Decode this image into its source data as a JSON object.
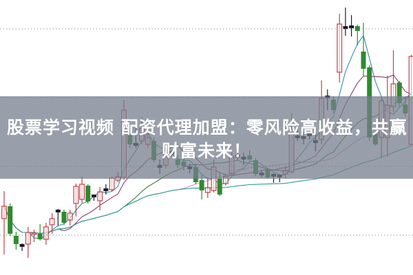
{
  "banner": {
    "line1": "股票学习视频 配资代理加盟：零风险高收益，共赢",
    "line2": "财富未来！"
  },
  "colors": {
    "up": "#c0404a",
    "down": "#2e8b2e",
    "doji": "#1a1a2a",
    "grid": "#9a9a9a",
    "ma5": "#2f8fa8",
    "ma10": "#8b3a6b",
    "ma20": "#3a7a3a",
    "ma30": "#d49ad4",
    "ma60": "#2a9d8f"
  },
  "chart_data": {
    "type": "candlestick",
    "title": "",
    "xlabel": "",
    "ylabel": "",
    "ylim": [
      0,
      40
    ],
    "grid": true,
    "gridlines": [
      35.8,
      25.8,
      15.8,
      5.8
    ],
    "ma_periods": [
      5,
      10,
      20,
      30,
      60
    ],
    "candles_ohlc": [
      [
        8.2,
        10.0,
        12.2,
        3.0
      ],
      [
        10.0,
        6.0,
        10.4,
        5.7
      ],
      [
        5.7,
        4.5,
        6.3,
        3.7
      ],
      [
        4.2,
        4.3,
        4.6,
        3.5
      ],
      [
        4.5,
        6.2,
        7.0,
        2.5
      ],
      [
        5.9,
        6.1,
        6.6,
        4.8
      ],
      [
        6.0,
        5.2,
        7.4,
        5.0
      ],
      [
        5.2,
        7.0,
        7.6,
        4.4
      ],
      [
        7.3,
        8.2,
        9.0,
        6.0
      ],
      [
        9.2,
        9.3,
        9.6,
        7.2
      ],
      [
        9.2,
        7.6,
        9.5,
        7.3
      ],
      [
        8.0,
        9.0,
        9.5,
        7.2
      ],
      [
        10.4,
        12.9,
        13.3,
        8.5
      ],
      [
        11.0,
        13.2,
        14.3,
        10.5
      ],
      [
        13.0,
        10.7,
        13.2,
        10.4
      ],
      [
        11.4,
        11.5,
        11.7,
        10.8
      ],
      [
        10.8,
        12.1,
        12.8,
        9.4
      ],
      [
        12.3,
        12.4,
        13.2,
        11.7
      ],
      [
        12.4,
        14.1,
        14.4,
        12.2
      ],
      [
        13.8,
        14.3,
        15.0,
        13.5
      ],
      [
        14.2,
        24.0,
        25.5,
        13.8
      ],
      [
        21.0,
        19.0,
        22.0,
        18.5
      ],
      [
        18.9,
        19.0,
        22.0,
        18.5
      ],
      [
        19.5,
        21.3,
        23.0,
        19.0
      ],
      [
        19.0,
        20.0,
        20.5,
        18.5
      ],
      [
        19.5,
        16.7,
        20.0,
        16.4
      ],
      [
        15.7,
        15.8,
        16.8,
        14.7
      ],
      [
        16.0,
        18.0,
        18.5,
        15.5
      ],
      [
        17.7,
        17.8,
        18.2,
        17.2
      ],
      [
        16.8,
        16.0,
        17.5,
        15.5
      ],
      [
        16.5,
        15.8,
        17.0,
        15.2
      ],
      [
        15.5,
        15.6,
        16.2,
        14.8
      ],
      [
        15.7,
        13.5,
        16.2,
        13.2
      ],
      [
        13.8,
        12.3,
        14.5,
        11.0
      ],
      [
        12.0,
        12.7,
        14.2,
        11.2
      ],
      [
        12.3,
        15.7,
        16.8,
        12.0
      ],
      [
        14.0,
        11.7,
        15.0,
        11.5
      ],
      [
        13.3,
        14.3,
        14.8,
        13.0
      ],
      [
        14.8,
        17.2,
        18.0,
        14.5
      ],
      [
        17.2,
        17.3,
        17.8,
        16.8
      ],
      [
        16.9,
        17.0,
        17.8,
        16.0
      ],
      [
        17.4,
        16.8,
        18.2,
        16.4
      ],
      [
        16.7,
        14.7,
        17.0,
        14.4
      ],
      [
        14.6,
        14.7,
        15.2,
        14.2
      ],
      [
        15.3,
        14.2,
        15.6,
        14.0
      ],
      [
        14.4,
        14.5,
        14.8,
        13.4
      ],
      [
        14.3,
        14.4,
        14.7,
        13.5
      ],
      [
        14.7,
        15.2,
        15.8,
        14.0
      ],
      [
        15.0,
        20.7,
        23.5,
        14.8
      ],
      [
        20.1,
        20.0,
        21.0,
        19.5
      ],
      [
        20.0,
        19.9,
        20.8,
        19.0
      ],
      [
        20.3,
        20.4,
        20.8,
        19.7
      ],
      [
        19.4,
        19.3,
        21.0,
        18.0
      ],
      [
        19.7,
        25.7,
        28.3,
        19.0
      ],
      [
        25.9,
        25.8,
        27.0,
        24.0
      ],
      [
        25.5,
        24.0,
        26.0,
        23.5
      ],
      [
        29.5,
        36.5,
        38.0,
        28.0
      ],
      [
        35.9,
        36.0,
        38.9,
        34.8
      ],
      [
        36.0,
        36.1,
        37.8,
        34.7
      ],
      [
        36.2,
        35.5,
        36.4,
        33.4
      ],
      [
        32.5,
        30.0,
        36.7,
        29.0
      ],
      [
        30.2,
        20.0,
        30.5,
        19.5
      ],
      [
        20.5,
        19.0,
        21.0,
        18.8
      ],
      [
        20.0,
        25.3,
        26.0,
        17.0
      ],
      [
        20.0,
        24.7,
        29.0,
        17.2
      ],
      [
        24.5,
        27.8,
        32.7,
        23.7
      ],
      [
        28.0,
        25.0,
        28.2,
        24.5
      ],
      [
        24.8,
        23.5,
        26.0,
        23.0
      ],
      [
        19.0,
        31.8,
        32.0,
        18.8
      ]
    ]
  }
}
